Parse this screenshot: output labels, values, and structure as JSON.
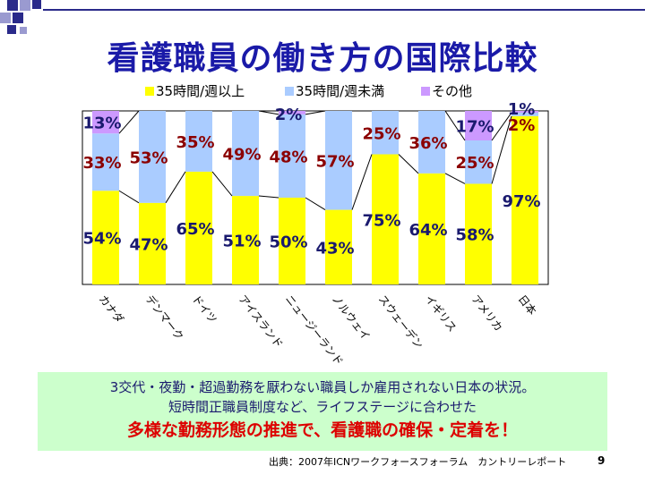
{
  "slide": {
    "title": "看護職員の働き方の国際比較",
    "note_line1": "3交代・夜勤・超過勤務を厭わない職員しか雇用されない日本の状況。",
    "note_line2": "短時間正職員制度など、ライフステージに合わせた",
    "note_line3": "多様な勤務形態の推進で、看護職の確保・定着を！",
    "source": "出典：2007年ICNワークフォースフォーラム　カントリーレポート",
    "page_number": "9"
  },
  "colors": {
    "full_time": "#ffff00",
    "short_time": "#aaccff",
    "other": "#cc99ff",
    "label_full": "#1a1a6e",
    "label_short": "#8b0000",
    "label_other": "#1a1a6e"
  },
  "chart_data": {
    "type": "bar",
    "stacked": true,
    "percent": true,
    "legend_position": "top",
    "categories": [
      "カナダ",
      "デンマーク",
      "ドイツ",
      "アイスランド",
      "ニュージーランド",
      "ノルウェイ",
      "スウェーデン",
      "イギリス",
      "アメリカ",
      "日本"
    ],
    "series": [
      {
        "name": "35時間/週以上",
        "values": [
          54,
          47,
          65,
          51,
          50,
          43,
          75,
          64,
          58,
          97
        ]
      },
      {
        "name": "35時間/週未満",
        "values": [
          33,
          53,
          35,
          49,
          48,
          57,
          25,
          36,
          25,
          2
        ]
      },
      {
        "name": "その他",
        "values": [
          13,
          0,
          0,
          0,
          2,
          0,
          0,
          0,
          17,
          1
        ]
      }
    ],
    "labels": [
      [
        "54%",
        "47%",
        "65%",
        "51%",
        "50%",
        "43%",
        "75%",
        "64%",
        "58%",
        "97%"
      ],
      [
        "33%",
        "53%",
        "35%",
        "49%",
        "48%",
        "57%",
        "25%",
        "36%",
        "25%",
        "2%"
      ],
      [
        "13%",
        "",
        "",
        "",
        "2%",
        "",
        "",
        "",
        "17%",
        "1%"
      ]
    ],
    "ylim": [
      0,
      100
    ]
  }
}
